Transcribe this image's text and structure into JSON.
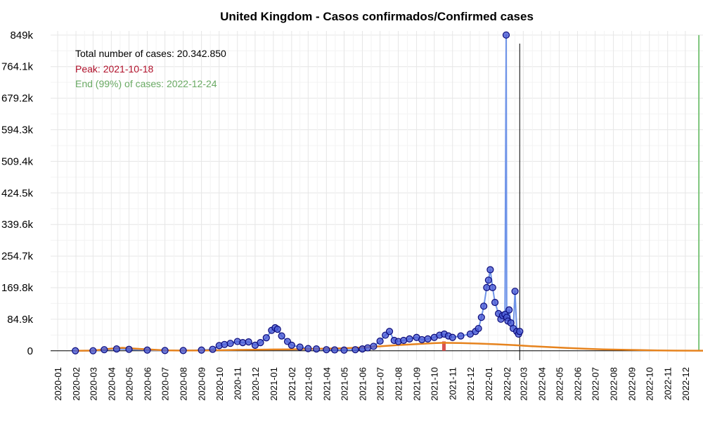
{
  "chart_data": {
    "type": "line",
    "title": "United Kingdom - Casos confirmados/Confirmed cases",
    "xlabel": "",
    "ylabel": "",
    "x_axis": {
      "type": "date",
      "range": [
        "2019-12-20",
        "2022-12-31"
      ]
    },
    "yticks": [
      0,
      84900,
      169800,
      254700,
      339600,
      424500,
      509400,
      594300,
      679200,
      764100,
      849000
    ],
    "ytick_labels": [
      "0",
      "84.9k",
      "169.8k",
      "254.7k",
      "339.6k",
      "424.5k",
      "509.4k",
      "594.3k",
      "679.2k",
      "764.1k",
      "849k"
    ],
    "ylim": [
      -25000,
      860000
    ],
    "xticks": [
      "2020-01-01",
      "2020-02-01",
      "2020-03-01",
      "2020-04-01",
      "2020-05-01",
      "2020-06-01",
      "2020-07-01",
      "2020-08-01",
      "2020-09-01",
      "2020-10-01",
      "2020-11-01",
      "2020-12-01",
      "2021-01-01",
      "2021-02-01",
      "2021-03-01",
      "2021-04-01",
      "2021-05-01",
      "2021-06-01",
      "2021-07-01",
      "2021-08-01",
      "2021-09-01",
      "2021-10-01",
      "2021-11-01",
      "2021-12-01",
      "2022-01-01",
      "2022-02-01",
      "2022-03-01",
      "2022-04-01",
      "2022-05-01",
      "2022-06-01",
      "2022-07-01",
      "2022-08-01",
      "2022-09-01",
      "2022-10-01",
      "2022-11-01",
      "2022-12-01"
    ],
    "xtick_labels": [
      "2020-01",
      "2020-02",
      "2020-03",
      "2020-04",
      "2020-05",
      "2020-06",
      "2020-07",
      "2020-08",
      "2020-09",
      "2020-10",
      "2020-11",
      "2020-12",
      "2021-01",
      "2021-02",
      "2021-03",
      "2021-04",
      "2021-05",
      "2021-06",
      "2021-07",
      "2021-08",
      "2021-09",
      "2021-10",
      "2021-11",
      "2021-12",
      "2022-01",
      "2022-02",
      "2022-03",
      "2022-04",
      "2022-05",
      "2022-06",
      "2022-07",
      "2022-08",
      "2022-09",
      "2022-10",
      "2022-11",
      "2022-12"
    ],
    "grid": true,
    "annotations": {
      "total": "Total number of cases: 20.342.850",
      "peak": "Peak: 2021-10-18",
      "end": "End (99%) of cases: 2022-12-24"
    },
    "colors": {
      "points_fill": "#4a5bd6",
      "points_stroke": "#0b0b7a",
      "line": "#6f94e8",
      "fitted": "#e6831e",
      "peak_marker": "#d9534f",
      "peak_text": "#b0102a",
      "end_line": "#7cc47a",
      "end_text": "#6aaa64",
      "today_line": "#000000"
    },
    "vertical_lines": {
      "today": "2022-02-23",
      "end": "2022-12-24",
      "peak": "2021-10-18"
    },
    "observed_series": {
      "name": "",
      "x": [
        "2020-01-31",
        "2020-03-01",
        "2020-03-20",
        "2020-04-10",
        "2020-05-01",
        "2020-06-01",
        "2020-07-01",
        "2020-08-01",
        "2020-09-01",
        "2020-09-20",
        "2020-10-01",
        "2020-10-10",
        "2020-10-20",
        "2020-11-01",
        "2020-11-10",
        "2020-11-20",
        "2020-12-01",
        "2020-12-10",
        "2020-12-20",
        "2020-12-29",
        "2021-01-04",
        "2021-01-08",
        "2021-01-15",
        "2021-01-25",
        "2021-02-01",
        "2021-02-15",
        "2021-03-01",
        "2021-03-15",
        "2021-04-01",
        "2021-04-15",
        "2021-05-01",
        "2021-05-20",
        "2021-06-01",
        "2021-06-10",
        "2021-06-20",
        "2021-07-01",
        "2021-07-10",
        "2021-07-17",
        "2021-07-25",
        "2021-08-01",
        "2021-08-10",
        "2021-08-20",
        "2021-09-01",
        "2021-09-10",
        "2021-09-20",
        "2021-10-01",
        "2021-10-10",
        "2021-10-18",
        "2021-10-25",
        "2021-11-01",
        "2021-11-15",
        "2021-12-01",
        "2021-12-10",
        "2021-12-15",
        "2021-12-20",
        "2021-12-24",
        "2021-12-29",
        "2022-01-01",
        "2022-01-04",
        "2022-01-08",
        "2022-01-12",
        "2022-01-18",
        "2022-01-22",
        "2022-01-25",
        "2022-01-29",
        "2022-01-31",
        "2022-02-01",
        "2022-02-03",
        "2022-02-05",
        "2022-02-08",
        "2022-02-12",
        "2022-02-15",
        "2022-02-18",
        "2022-02-21",
        "2022-02-23"
      ],
      "values": [
        2,
        200,
        3000,
        5000,
        4000,
        2000,
        700,
        800,
        2000,
        4000,
        14000,
        17000,
        20000,
        25000,
        22000,
        24000,
        15000,
        22000,
        35000,
        55000,
        62000,
        58000,
        40000,
        25000,
        15000,
        10000,
        6000,
        5000,
        3000,
        2500,
        2000,
        3000,
        5000,
        8000,
        12000,
        26000,
        42000,
        52000,
        28000,
        25000,
        28000,
        32000,
        36000,
        30000,
        32000,
        36000,
        42000,
        45000,
        40000,
        36000,
        40000,
        45000,
        52000,
        60000,
        90000,
        120000,
        170000,
        190000,
        218000,
        170000,
        130000,
        100000,
        85000,
        95000,
        98000,
        849000,
        90000,
        80000,
        110000,
        75000,
        60000,
        160000,
        52000,
        45000,
        52000
      ]
    },
    "fitted_series": {
      "name": "",
      "x": [
        "2020-01-31",
        "2020-03-01",
        "2020-04-01",
        "2020-04-20",
        "2020-05-20",
        "2020-07-01",
        "2020-08-01",
        "2020-09-01",
        "2020-10-01",
        "2020-11-01",
        "2020-12-01",
        "2021-01-01",
        "2021-02-01",
        "2021-03-01",
        "2021-04-01",
        "2021-05-01",
        "2021-06-01",
        "2021-07-01",
        "2021-08-01",
        "2021-09-01",
        "2021-10-01",
        "2021-10-18",
        "2021-11-15",
        "2021-12-15",
        "2022-01-15",
        "2022-02-15",
        "2022-03-15",
        "2022-04-15",
        "2022-05-15",
        "2022-06-15",
        "2022-07-15",
        "2022-08-15",
        "2022-09-15",
        "2022-10-15",
        "2022-11-15",
        "2022-12-31"
      ],
      "values": [
        0,
        500,
        6000,
        8000,
        5000,
        1200,
        800,
        1000,
        1500,
        2500,
        3000,
        3500,
        4000,
        5000,
        6000,
        7000,
        9000,
        12000,
        15500,
        18000,
        20500,
        21500,
        21000,
        19500,
        17500,
        15000,
        12500,
        10000,
        7500,
        5500,
        4000,
        2800,
        1800,
        1100,
        600,
        300
      ]
    }
  }
}
